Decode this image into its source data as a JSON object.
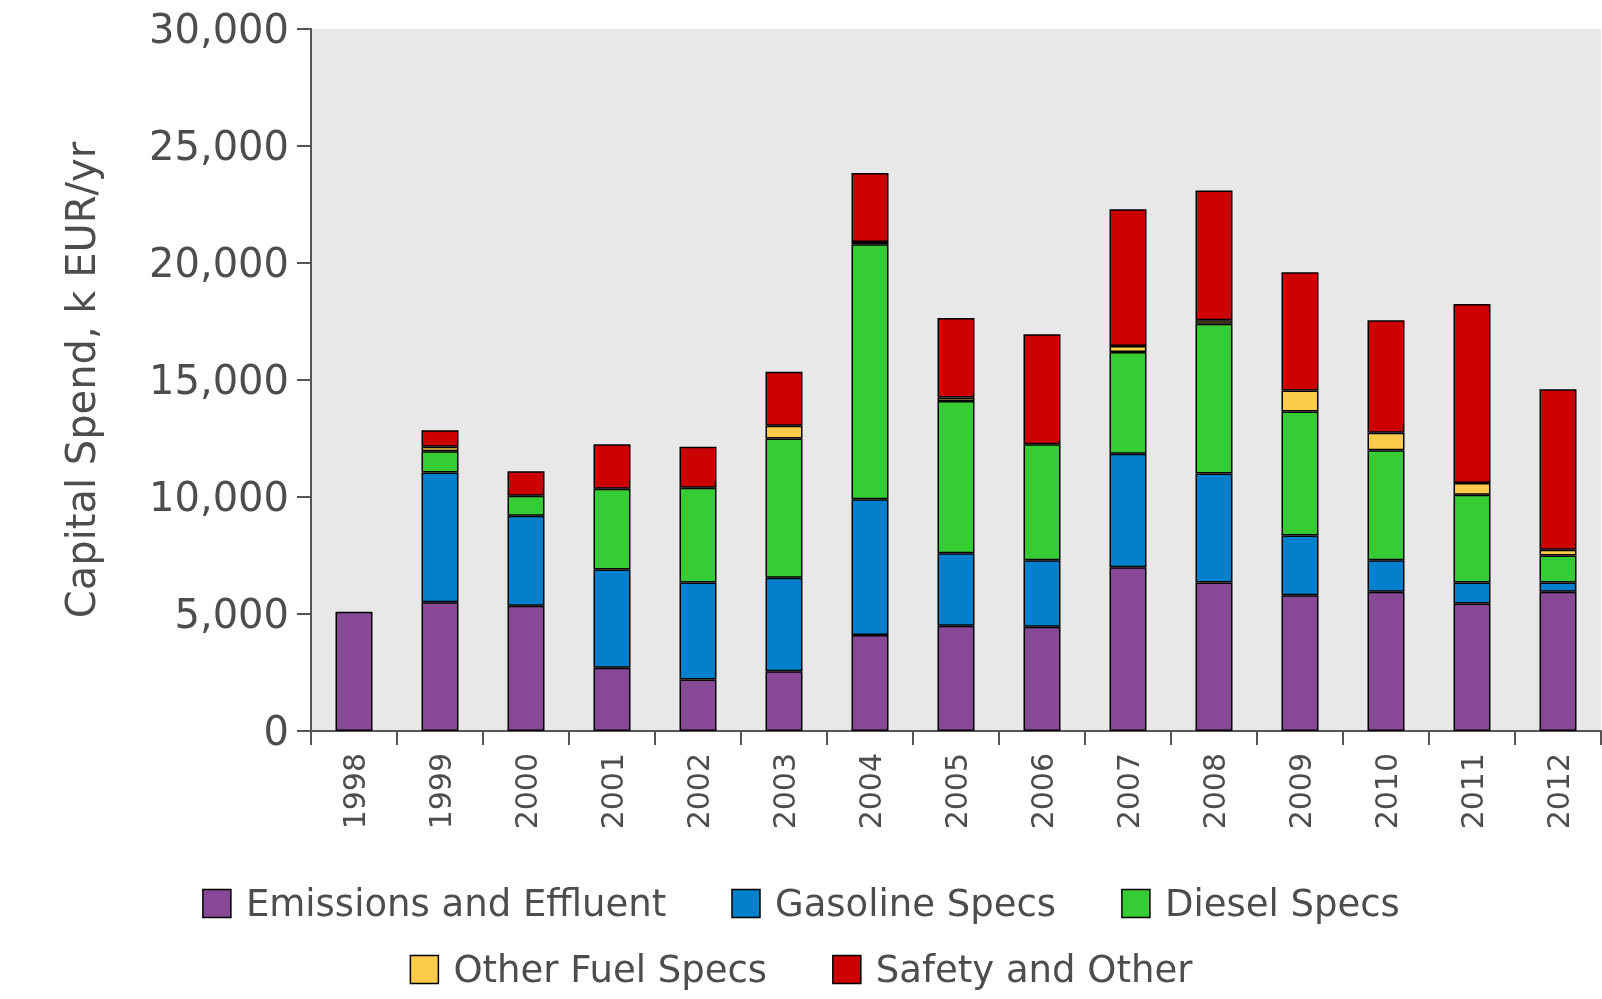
{
  "chart_data": {
    "type": "bar",
    "stacked": true,
    "ylabel": "Capital Spend, k EUR/yr",
    "categories": [
      "1998",
      "1999",
      "2000",
      "2001",
      "2002",
      "2003",
      "2004",
      "2005",
      "2006",
      "2007",
      "2008",
      "2009",
      "2010",
      "2011",
      "2012"
    ],
    "series": [
      {
        "name": "Emissions and Effluent",
        "color": "#874896",
        "values": [
          5100,
          5500,
          5350,
          2700,
          2200,
          2550,
          4100,
          4500,
          4450,
          7000,
          6350,
          5800,
          5950,
          5450,
          5950
        ]
      },
      {
        "name": "Gasoline Specs",
        "color": "#0380cc",
        "values": [
          null,
          5550,
          3850,
          4200,
          4150,
          4000,
          5800,
          3100,
          2850,
          4850,
          4650,
          2550,
          1350,
          900,
          400
        ]
      },
      {
        "name": "Diesel Specs",
        "color": "#36cc33",
        "values": [
          null,
          900,
          850,
          3450,
          4050,
          5950,
          10900,
          6500,
          4950,
          4350,
          6400,
          5300,
          4700,
          3750,
          1150
        ]
      },
      {
        "name": "Other Fuel Specs",
        "color": "#fccb4a",
        "values": [
          null,
          200,
          null,
          null,
          null,
          550,
          100,
          150,
          null,
          250,
          150,
          900,
          750,
          500,
          250
        ]
      },
      {
        "name": "Safety and Other",
        "color": "#cc0000",
        "values": [
          null,
          700,
          1050,
          1900,
          1750,
          2300,
          2950,
          3400,
          4700,
          5850,
          5550,
          5050,
          4800,
          7650,
          6850
        ]
      }
    ],
    "ylim": [
      0,
      30000
    ],
    "yticks": [
      0,
      {
        "value": 5000,
        "label": "5,000"
      },
      {
        "value": 10000,
        "label": "10,000"
      },
      {
        "value": 15000,
        "label": "15,000"
      },
      {
        "value": 20000,
        "label": "20,000"
      },
      {
        "value": 25000,
        "label": "25,000"
      },
      {
        "value": 30000,
        "label": "30,000"
      }
    ],
    "grid": false,
    "legend": "bottom"
  }
}
